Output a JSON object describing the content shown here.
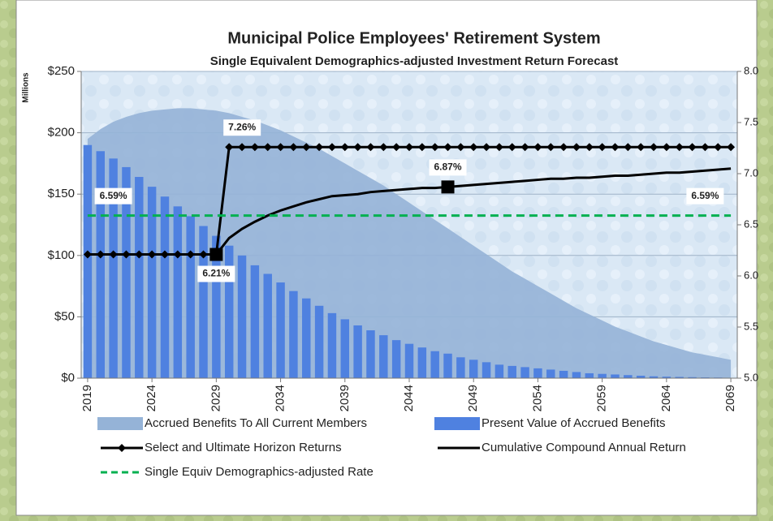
{
  "chart_data": {
    "type": "combo",
    "title": "Municipal Police Employees' Retirement System",
    "subtitle": "Single Equivalent Demographics-adjusted  Investment Return Forecast",
    "y_label": "Millions",
    "x": [
      2019,
      2020,
      2021,
      2022,
      2023,
      2024,
      2025,
      2026,
      2027,
      2028,
      2029,
      2030,
      2031,
      2032,
      2033,
      2034,
      2035,
      2036,
      2037,
      2038,
      2039,
      2040,
      2041,
      2042,
      2043,
      2044,
      2045,
      2046,
      2047,
      2048,
      2049,
      2050,
      2051,
      2052,
      2053,
      2054,
      2055,
      2056,
      2057,
      2058,
      2059,
      2060,
      2061,
      2062,
      2063,
      2064,
      2065,
      2066,
      2067,
      2068,
      2069
    ],
    "xlim": [
      2018.5,
      2069.5
    ],
    "xticks": [
      2019,
      2024,
      2029,
      2034,
      2039,
      2044,
      2049,
      2054,
      2059,
      2064,
      2069
    ],
    "ylim": [
      0,
      250
    ],
    "yticks": [
      {
        "value": 0,
        "label": "$0"
      },
      {
        "value": 50,
        "label": "$50"
      },
      {
        "value": 100,
        "label": "$100"
      },
      {
        "value": 150,
        "label": "$150"
      },
      {
        "value": 200,
        "label": "$200"
      },
      {
        "value": 250,
        "label": "$250"
      }
    ],
    "y2lim": [
      5,
      8
    ],
    "y2ticks": [
      {
        "value": 5,
        "label": "5.0"
      },
      {
        "value": 5.5,
        "label": "5.5"
      },
      {
        "value": 6,
        "label": "6.0"
      },
      {
        "value": 6.5,
        "label": "6.5"
      },
      {
        "value": 7,
        "label": "7.0"
      },
      {
        "value": 7.5,
        "label": "7.5"
      },
      {
        "value": 8,
        "label": "8.0"
      }
    ],
    "grid": true,
    "series": [
      {
        "name": "Accrued Benefits To All Current Members",
        "type": "area",
        "color": "#95b3d7",
        "values": [
          195,
          203,
          209,
          213,
          216,
          218,
          219,
          220,
          220,
          219,
          218,
          216,
          213,
          210,
          206,
          202,
          197,
          192,
          187,
          181,
          175,
          169,
          163,
          157,
          150,
          143,
          136,
          129,
          122,
          115,
          108,
          101,
          94,
          87,
          81,
          75,
          69,
          63,
          57,
          52,
          47,
          42,
          38,
          34,
          30,
          27,
          24,
          21,
          19,
          17,
          15
        ]
      },
      {
        "name": "Present Value of Accrued Benefits",
        "type": "bar",
        "color": "#4f81e0",
        "values": [
          190,
          185,
          179,
          172,
          164,
          156,
          148,
          140,
          132,
          124,
          116,
          108,
          100,
          92,
          85,
          78,
          71,
          65,
          59,
          53,
          48,
          43,
          39,
          35,
          31,
          28,
          25,
          22,
          20,
          17,
          15,
          13,
          11,
          10,
          9,
          8,
          7,
          6,
          5,
          4,
          3.5,
          3,
          2.5,
          2,
          1.5,
          1.2,
          1,
          0.8,
          0.6,
          0.5,
          0.3
        ]
      },
      {
        "name": "Select and Ultimate Horizon Returns",
        "type": "line",
        "axis": "y2",
        "color": "#000000",
        "marker": "diamond",
        "label_color": "#e00000",
        "values": [
          6.21,
          6.21,
          6.21,
          6.21,
          6.21,
          6.21,
          6.21,
          6.21,
          6.21,
          6.21,
          6.21,
          7.26,
          7.26,
          7.26,
          7.26,
          7.26,
          7.26,
          7.26,
          7.26,
          7.26,
          7.26,
          7.26,
          7.26,
          7.26,
          7.26,
          7.26,
          7.26,
          7.26,
          7.26,
          7.26,
          7.26,
          7.26,
          7.26,
          7.26,
          7.26,
          7.26,
          7.26,
          7.26,
          7.26,
          7.26,
          7.26,
          7.26,
          7.26,
          7.26,
          7.26,
          7.26,
          7.26,
          7.26,
          7.26,
          7.26,
          7.26
        ],
        "value_labels": [
          null,
          null,
          null,
          null,
          null,
          null,
          null,
          null,
          null,
          null,
          "6.21%",
          "7.26%",
          null,
          null,
          null,
          null,
          null,
          null,
          null,
          null,
          null,
          null,
          null,
          null,
          null,
          null,
          null,
          null,
          null,
          null,
          null,
          null,
          null,
          null,
          null,
          null,
          null,
          null,
          null,
          null,
          null,
          null,
          null,
          null,
          null,
          null,
          null,
          null,
          null,
          null,
          null
        ]
      },
      {
        "name": "Cumulative Compound Annual Return",
        "type": "line",
        "axis": "y2",
        "color": "#000000",
        "label_color": "#000000",
        "values": [
          6.21,
          6.21,
          6.21,
          6.21,
          6.21,
          6.21,
          6.21,
          6.21,
          6.21,
          6.21,
          6.21,
          6.37,
          6.46,
          6.53,
          6.59,
          6.64,
          6.68,
          6.72,
          6.75,
          6.78,
          6.79,
          6.8,
          6.82,
          6.83,
          6.84,
          6.85,
          6.86,
          6.86,
          6.87,
          6.88,
          6.89,
          6.9,
          6.91,
          6.92,
          6.93,
          6.94,
          6.95,
          6.95,
          6.96,
          6.96,
          6.97,
          6.98,
          6.98,
          6.99,
          7.0,
          7.01,
          7.01,
          7.02,
          7.03,
          7.04,
          7.05
        ],
        "value_labels": [
          null,
          null,
          null,
          null,
          null,
          null,
          null,
          null,
          null,
          null,
          null,
          null,
          null,
          null,
          null,
          null,
          null,
          null,
          null,
          null,
          null,
          null,
          null,
          null,
          null,
          null,
          null,
          null,
          "6.87%",
          null,
          null,
          null,
          null,
          null,
          null,
          null,
          null,
          null,
          null,
          null,
          null,
          null,
          null,
          null,
          null,
          null,
          null,
          null,
          null,
          null,
          null
        ]
      },
      {
        "name": "Single Equiv Demographics-adjusted Rate",
        "type": "dashed",
        "axis": "y2",
        "color": "#00b050",
        "label_color": "#00b050",
        "values": [
          6.59,
          6.59,
          6.59,
          6.59,
          6.59,
          6.59,
          6.59,
          6.59,
          6.59,
          6.59,
          6.59,
          6.59,
          6.59,
          6.59,
          6.59,
          6.59,
          6.59,
          6.59,
          6.59,
          6.59,
          6.59,
          6.59,
          6.59,
          6.59,
          6.59,
          6.59,
          6.59,
          6.59,
          6.59,
          6.59,
          6.59,
          6.59,
          6.59,
          6.59,
          6.59,
          6.59,
          6.59,
          6.59,
          6.59,
          6.59,
          6.59,
          6.59,
          6.59,
          6.59,
          6.59,
          6.59,
          6.59,
          6.59,
          6.59,
          6.59,
          6.59
        ],
        "value_labels": [
          null,
          null,
          "6.59%",
          null,
          null,
          null,
          null,
          null,
          null,
          null,
          null,
          null,
          null,
          null,
          null,
          null,
          null,
          null,
          null,
          null,
          null,
          null,
          null,
          null,
          null,
          null,
          null,
          null,
          null,
          null,
          null,
          null,
          null,
          null,
          null,
          null,
          null,
          null,
          null,
          null,
          null,
          null,
          null,
          null,
          null,
          null,
          null,
          null,
          "6.59%",
          null,
          null
        ]
      }
    ]
  }
}
